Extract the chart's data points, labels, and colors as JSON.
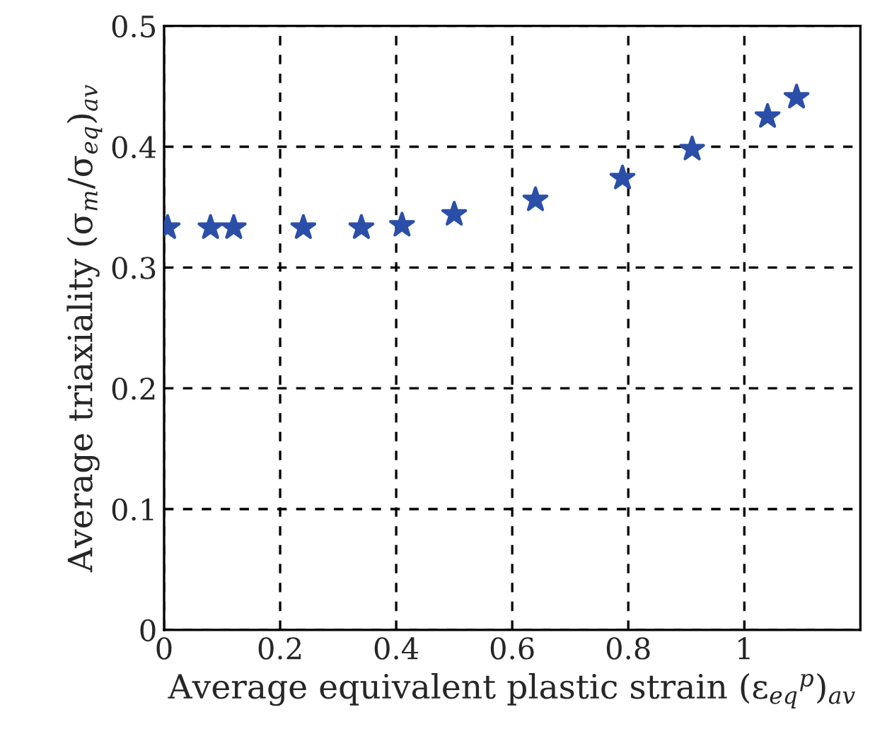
{
  "chart_data": {
    "type": "scatter",
    "xlabel": "Average equivalent plastic strain (ε$_{eq}$$^{p}$)$_{av}$",
    "ylabel": "Average triaxiality (σ$_{m}$/σ$_{eq}$)$_{av}$",
    "x": [
      0.006,
      0.08,
      0.12,
      0.24,
      0.34,
      0.41,
      0.5,
      0.64,
      0.79,
      0.91,
      1.04,
      1.09
    ],
    "series": [
      {
        "color": "#2b4fa8",
        "values": [
          0.333,
          0.333,
          0.333,
          0.333,
          0.333,
          0.335,
          0.344,
          0.356,
          0.374,
          0.398,
          0.425,
          0.441
        ]
      }
    ],
    "xlim": [
      0,
      1.2
    ],
    "xticks": [
      0,
      0.2,
      0.4,
      0.6,
      0.8,
      1
    ],
    "ylim": [
      0,
      0.5
    ],
    "yticks": [
      0,
      0.1,
      0.2,
      0.3,
      0.4,
      0.5
    ],
    "grid": true,
    "marker": "star"
  }
}
